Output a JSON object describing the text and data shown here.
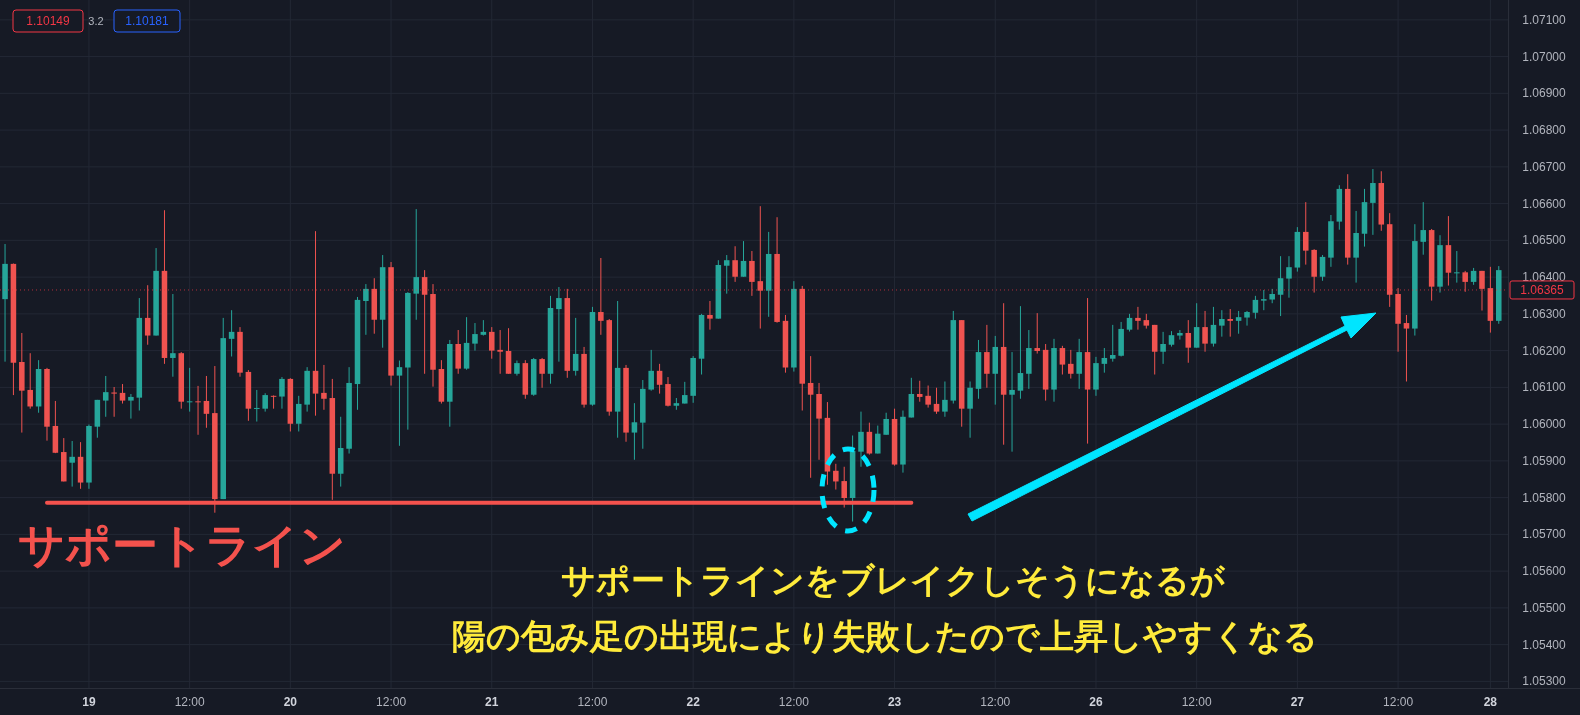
{
  "chart_data": {
    "type": "candlestick",
    "categories": [
      null,
      null,
      null,
      null,
      null,
      null,
      null,
      null,
      null,
      null,
      "19",
      null,
      null,
      null,
      null,
      null,
      null,
      null,
      null,
      null,
      null,
      null,
      "12:00",
      null,
      null,
      null,
      null,
      null,
      null,
      null,
      null,
      null,
      null,
      null,
      "20",
      null,
      null,
      null,
      null,
      null,
      null,
      null,
      null,
      null,
      null,
      null,
      "12:00",
      null,
      null,
      null,
      null,
      null,
      null,
      null,
      null,
      null,
      null,
      null,
      "21",
      null,
      null,
      null,
      null,
      null,
      null,
      null,
      null,
      null,
      null,
      null,
      "12:00",
      null,
      null,
      null,
      null,
      null,
      null,
      null,
      null,
      null,
      null,
      null,
      "22",
      null,
      null,
      null,
      null,
      null,
      null,
      null,
      null,
      null,
      null,
      null,
      "12:00",
      null,
      null,
      null,
      null,
      null,
      null,
      null,
      null,
      null,
      null,
      null,
      "23",
      null,
      null,
      null,
      null,
      null,
      null,
      null,
      null,
      null,
      null,
      null,
      "12:00",
      null,
      null,
      null,
      null,
      null,
      null,
      null,
      null,
      null,
      null,
      null,
      "26",
      null,
      null,
      null,
      null,
      null,
      null,
      null,
      null,
      null,
      null,
      null,
      "12:00",
      null,
      null,
      null,
      null,
      null,
      null,
      null,
      null,
      null,
      null,
      null,
      "27",
      null,
      null,
      null,
      null,
      null,
      null,
      null,
      null,
      null,
      null,
      null,
      "12:00",
      null,
      null,
      null,
      null,
      null,
      null,
      null,
      null,
      null,
      null,
      "28",
      null
    ],
    "ohlc": [
      [
        1.0634,
        1.0649,
        1.0617,
        1.06436
      ],
      [
        1.06436,
        1.06437,
        1.06079,
        1.06167
      ],
      [
        1.06169,
        1.06248,
        1.05977,
        1.06091
      ],
      [
        1.06093,
        1.06193,
        1.06042,
        1.06048
      ],
      [
        1.06048,
        1.06174,
        1.06031,
        1.0615
      ],
      [
        1.0615,
        1.06153,
        1.05955,
        1.05993
      ],
      [
        1.05995,
        1.06063,
        1.05921,
        1.05922
      ],
      [
        1.05924,
        1.05962,
        1.05844,
        1.05844
      ],
      [
        1.05895,
        1.05954,
        1.0583,
        1.05911
      ],
      [
        1.05911,
        1.05951,
        1.05824,
        1.05841
      ],
      [
        1.05841,
        1.05999,
        1.05824,
        1.05995
      ],
      [
        1.05993,
        1.06066,
        1.05963,
        1.06066
      ],
      [
        1.06064,
        1.06131,
        1.0602,
        1.06087
      ],
      [
        1.06086,
        1.06101,
        1.0602,
        1.06083
      ],
      [
        1.06085,
        1.06109,
        1.06056,
        1.06064
      ],
      [
        1.06064,
        1.06082,
        1.06015,
        1.06074
      ],
      [
        1.06072,
        1.06343,
        1.06037,
        1.06289
      ],
      [
        1.06289,
        1.06378,
        1.06216,
        1.06241
      ],
      [
        1.06241,
        1.06479,
        1.06241,
        1.06417
      ],
      [
        1.06417,
        1.06582,
        1.06164,
        1.0618
      ],
      [
        1.0618,
        1.06354,
        1.06129,
        1.06193
      ],
      [
        1.06193,
        1.06196,
        1.06042,
        1.06061
      ],
      [
        1.06061,
        1.06153,
        1.06034,
        1.06062
      ],
      [
        1.06062,
        1.06104,
        1.05971,
        1.06061
      ],
      [
        1.06063,
        1.06131,
        1.0599,
        1.06028
      ],
      [
        1.0603,
        1.06158,
        1.05759,
        1.05796
      ],
      [
        1.05796,
        1.06289,
        1.05796,
        1.06234
      ],
      [
        1.06232,
        1.0631,
        1.06184,
        1.06251
      ],
      [
        1.06251,
        1.06264,
        1.06129,
        1.0614
      ],
      [
        1.06142,
        1.06147,
        1.06009,
        1.06042
      ],
      [
        1.06043,
        1.06093,
        1.06007,
        1.06044
      ],
      [
        1.06042,
        1.06084,
        1.06034,
        1.06079
      ],
      [
        1.06077,
        1.06078,
        1.06042,
        1.06075
      ],
      [
        1.06075,
        1.06128,
        1.06042,
        1.06123
      ],
      [
        1.06123,
        1.06125,
        1.0598,
        1.06001
      ],
      [
        1.06001,
        1.06077,
        1.0598,
        1.06055
      ],
      [
        1.06053,
        1.06155,
        1.06034,
        1.06145
      ],
      [
        1.06145,
        1.06525,
        1.06023,
        1.06083
      ],
      [
        1.06085,
        1.06161,
        1.06039,
        1.06069
      ],
      [
        1.06071,
        1.06123,
        1.05794,
        1.05865
      ],
      [
        1.05865,
        1.0602,
        1.0583,
        1.05935
      ],
      [
        1.05933,
        1.06155,
        1.0592,
        1.06112
      ],
      [
        1.06109,
        1.06346,
        1.06039,
        1.06338
      ],
      [
        1.06335,
        1.06381,
        1.06243,
        1.06368
      ],
      [
        1.06368,
        1.06397,
        1.06246,
        1.06284
      ],
      [
        1.06284,
        1.0646,
        1.06208,
        1.06427
      ],
      [
        1.06427,
        1.06441,
        1.06105,
        1.06132
      ],
      [
        1.06132,
        1.06173,
        1.05941,
        1.06155
      ],
      [
        1.06154,
        1.06359,
        1.05985,
        1.06357
      ],
      [
        1.06355,
        1.06585,
        1.06284,
        1.064
      ],
      [
        1.064,
        1.06419,
        1.06137,
        1.06352
      ],
      [
        1.06354,
        1.06381,
        1.06102,
        1.06148
      ],
      [
        1.0615,
        1.06174,
        1.06056,
        1.06061
      ],
      [
        1.06061,
        1.06229,
        1.05993,
        1.06218
      ],
      [
        1.06218,
        1.06256,
        1.06137,
        1.06151
      ],
      [
        1.06151,
        1.06291,
        1.06148,
        1.06221
      ],
      [
        1.06219,
        1.06275,
        1.062,
        1.06245
      ],
      [
        1.06243,
        1.06283,
        1.06241,
        1.06251
      ],
      [
        1.06251,
        1.06264,
        1.06178,
        1.062
      ],
      [
        1.06202,
        1.06256,
        1.06137,
        1.06197
      ],
      [
        1.06199,
        1.06261,
        1.06137,
        1.06137
      ],
      [
        1.06137,
        1.06173,
        1.06132,
        1.06166
      ],
      [
        1.06166,
        1.06174,
        1.06069,
        1.0608
      ],
      [
        1.0608,
        1.0618,
        1.06077,
        1.06177
      ],
      [
        1.06177,
        1.0618,
        1.06099,
        1.06137
      ],
      [
        1.06137,
        1.06349,
        1.0611,
        1.06316
      ],
      [
        1.06313,
        1.06373,
        1.0617,
        1.06343
      ],
      [
        1.06343,
        1.06368,
        1.06126,
        1.06145
      ],
      [
        1.06145,
        1.06289,
        1.06132,
        1.06191
      ],
      [
        1.06191,
        1.0621,
        1.06045,
        1.06053
      ],
      [
        1.06053,
        1.06319,
        1.0605,
        1.06305
      ],
      [
        1.06305,
        1.06452,
        1.06243,
        1.06281
      ],
      [
        1.06283,
        1.06286,
        1.06023,
        1.06034
      ],
      [
        1.06034,
        1.06335,
        1.05963,
        1.06153
      ],
      [
        1.06153,
        1.06161,
        1.05952,
        1.05977
      ],
      [
        1.05977,
        1.06057,
        1.05903,
        1.06005
      ],
      [
        1.06004,
        1.0612,
        1.05933,
        1.06096
      ],
      [
        1.06094,
        1.06202,
        1.06091,
        1.06145
      ],
      [
        1.06145,
        1.06164,
        1.06083,
        1.06107
      ],
      [
        1.06109,
        1.06128,
        1.06048,
        1.0605
      ],
      [
        1.0605,
        1.06071,
        1.06039,
        1.06057
      ],
      [
        1.06056,
        1.06115,
        1.06056,
        1.06079
      ],
      [
        1.06077,
        1.06185,
        1.06058,
        1.0618
      ],
      [
        1.06178,
        1.063,
        1.06135,
        1.06297
      ],
      [
        1.06297,
        1.06335,
        1.06257,
        1.06287
      ],
      [
        1.06287,
        1.06446,
        1.06287,
        1.06433
      ],
      [
        1.06431,
        1.0646,
        1.06355,
        1.06446
      ],
      [
        1.06446,
        1.06484,
        1.06387,
        1.06401
      ],
      [
        1.06401,
        1.06498,
        1.06401,
        1.06444
      ],
      [
        1.06444,
        1.06471,
        1.06349,
        1.06387
      ],
      [
        1.06389,
        1.06593,
        1.0626,
        1.06363
      ],
      [
        1.06363,
        1.06523,
        1.06292,
        1.06463
      ],
      [
        1.06463,
        1.06563,
        1.06276,
        1.06278
      ],
      [
        1.06281,
        1.06297,
        1.0614,
        1.06154
      ],
      [
        1.06154,
        1.06389,
        1.06143,
        1.06368
      ],
      [
        1.06368,
        1.06376,
        1.06037,
        1.0611
      ],
      [
        1.06112,
        1.06185,
        1.05854,
        1.0608
      ],
      [
        1.06082,
        1.06112,
        1.05903,
        1.06015
      ],
      [
        1.06017,
        1.0606,
        1.05835,
        1.05871
      ],
      [
        1.05873,
        1.05892,
        1.05822,
        1.05844
      ],
      [
        1.05845,
        1.05884,
        1.05773,
        1.05799
      ],
      [
        1.05799,
        1.05969,
        1.05735,
        1.05927
      ],
      [
        1.05925,
        1.06034,
        1.05884,
        1.05979
      ],
      [
        1.05979,
        1.06004,
        1.05917,
        1.0592
      ],
      [
        1.0592,
        1.05996,
        1.0592,
        1.05974
      ],
      [
        1.05971,
        1.06031,
        1.05971,
        1.06014
      ],
      [
        1.06014,
        1.06042,
        1.05887,
        1.0589
      ],
      [
        1.0589,
        1.06037,
        1.05868,
        1.0602
      ],
      [
        1.06018,
        1.06126,
        1.06018,
        1.06082
      ],
      [
        1.06082,
        1.06118,
        1.06061,
        1.06074
      ],
      [
        1.06077,
        1.06105,
        1.06045,
        1.06053
      ],
      [
        1.06055,
        1.06099,
        1.06028,
        1.06034
      ],
      [
        1.06034,
        1.06116,
        1.0602,
        1.06066
      ],
      [
        1.06064,
        1.06308,
        1.06056,
        1.06283
      ],
      [
        1.06283,
        1.06283,
        1.05993,
        1.06042
      ],
      [
        1.06042,
        1.06116,
        1.05963,
        1.06099
      ],
      [
        1.06096,
        1.06229,
        1.06069,
        1.06196
      ],
      [
        1.06196,
        1.0627,
        1.06099,
        1.06137
      ],
      [
        1.06137,
        1.0624,
        1.06053,
        1.0621
      ],
      [
        1.0621,
        1.06329,
        1.05944,
        1.0608
      ],
      [
        1.0608,
        1.06196,
        1.05925,
        1.06093
      ],
      [
        1.06091,
        1.06321,
        1.06069,
        1.06139
      ],
      [
        1.06137,
        1.06256,
        1.06096,
        1.06207
      ],
      [
        1.06207,
        1.06302,
        1.06192,
        1.06199
      ],
      [
        1.06202,
        1.06218,
        1.06064,
        1.06094
      ],
      [
        1.06094,
        1.06232,
        1.06061,
        1.06207
      ],
      [
        1.06207,
        1.06213,
        1.06135,
        1.06162
      ],
      [
        1.06164,
        1.06202,
        1.06124,
        1.06137
      ],
      [
        1.06137,
        1.06232,
        1.06096,
        1.06196
      ],
      [
        1.06196,
        1.06343,
        1.05947,
        1.06094
      ],
      [
        1.06094,
        1.06183,
        1.06077,
        1.06166
      ],
      [
        1.06164,
        1.06207,
        1.0614,
        1.0618
      ],
      [
        1.06178,
        1.0627,
        1.0617,
        1.06188
      ],
      [
        1.06186,
        1.06278,
        1.06184,
        1.06259
      ],
      [
        1.06257,
        1.063,
        1.06252,
        1.06289
      ],
      [
        1.06289,
        1.06319,
        1.06257,
        1.06281
      ],
      [
        1.06283,
        1.063,
        1.0626,
        1.06268
      ],
      [
        1.0627,
        1.0627,
        1.06135,
        1.06197
      ],
      [
        1.06197,
        1.06251,
        1.06164,
        1.06218
      ],
      [
        1.06216,
        1.06253,
        1.06211,
        1.06242
      ],
      [
        1.06241,
        1.06256,
        1.0623,
        1.06248
      ],
      [
        1.06248,
        1.06283,
        1.06167,
        1.06208
      ],
      [
        1.06208,
        1.06329,
        1.06208,
        1.06264
      ],
      [
        1.06264,
        1.06308,
        1.06197,
        1.06219
      ],
      [
        1.06219,
        1.06319,
        1.06211,
        1.0627
      ],
      [
        1.06268,
        1.0631,
        1.06238,
        1.06286
      ],
      [
        1.06286,
        1.06313,
        1.06238,
        1.06281
      ],
      [
        1.06281,
        1.06308,
        1.06246,
        1.06291
      ],
      [
        1.0629,
        1.06308,
        1.06268,
        1.06305
      ],
      [
        1.06303,
        1.06349,
        1.06287,
        1.06338
      ],
      [
        1.06336,
        1.06365,
        1.0631,
        1.0634
      ],
      [
        1.06339,
        1.06368,
        1.06329,
        1.06354
      ],
      [
        1.06352,
        1.06457,
        1.06294,
        1.06397
      ],
      [
        1.06396,
        1.06457,
        1.06344,
        1.06427
      ],
      [
        1.06426,
        1.06536,
        1.06415,
        1.06523
      ],
      [
        1.06523,
        1.06604,
        1.06434,
        1.06472
      ],
      [
        1.06474,
        1.06476,
        1.06358,
        1.06401
      ],
      [
        1.06401,
        1.0646,
        1.0639,
        1.06455
      ],
      [
        1.06453,
        1.06569,
        1.06428,
        1.06552
      ],
      [
        1.06551,
        1.0665,
        1.06529,
        1.0664
      ],
      [
        1.0664,
        1.0668,
        1.06434,
        1.06453
      ],
      [
        1.06453,
        1.0658,
        1.06385,
        1.0652
      ],
      [
        1.06518,
        1.0664,
        1.06483,
        1.06604
      ],
      [
        1.06602,
        1.06694,
        1.06515,
        1.06656
      ],
      [
        1.06656,
        1.06688,
        1.06526,
        1.06543
      ],
      [
        1.06544,
        1.06574,
        1.06319,
        1.06352
      ],
      [
        1.06354,
        1.0637,
        1.06197,
        1.06273
      ],
      [
        1.06275,
        1.06297,
        1.06116,
        1.0626
      ],
      [
        1.0626,
        1.06544,
        1.06241,
        1.06498
      ],
      [
        1.06496,
        1.06604,
        1.06461,
        1.06528
      ],
      [
        1.06528,
        1.06531,
        1.06336,
        1.06374
      ],
      [
        1.06374,
        1.06514,
        1.06358,
        1.06487
      ],
      [
        1.06487,
        1.06566,
        1.06377,
        1.06412
      ],
      [
        1.06412,
        1.06471,
        1.06385,
        1.06413
      ],
      [
        1.06413,
        1.06417,
        1.0636,
        1.06387
      ],
      [
        1.06387,
        1.06425,
        1.06379,
        1.06417
      ],
      [
        1.06417,
        1.06417,
        1.06309,
        1.06368
      ],
      [
        1.0637,
        1.06428,
        1.06249,
        1.06281
      ],
      [
        1.06281,
        1.0643,
        1.06273,
        1.06419
      ]
    ],
    "series": [
      {
        "type": "line",
        "name": "サポートライン",
        "color": "#f4524d",
        "values": [
          null,
          null,
          null,
          null,
          null,
          1.05786,
          1.05786,
          1.05786,
          1.05786,
          1.05786,
          1.05786,
          1.05786,
          1.05786,
          1.05786,
          1.05786,
          1.05786,
          1.05786,
          1.05786,
          1.05786,
          1.05786,
          1.05786,
          1.05786,
          1.05786,
          1.05786,
          1.05786,
          1.05786,
          1.05786,
          1.05786,
          1.05786,
          1.05786,
          1.05786,
          1.05786,
          1.05786,
          1.05786,
          1.05786,
          1.05786,
          1.05786,
          1.05786,
          1.05786,
          1.05786,
          1.05786,
          1.05786,
          1.05786,
          1.05786,
          1.05786,
          1.05786,
          1.05786,
          1.05786,
          1.05786,
          1.05786,
          1.05786,
          1.05786,
          1.05786,
          1.05786,
          1.05786,
          1.05786,
          1.05786,
          1.05786,
          1.05786,
          1.05786,
          1.05786,
          1.05786,
          1.05786,
          1.05786,
          1.05786,
          1.05786,
          1.05786,
          1.05786,
          1.05786,
          1.05786,
          1.05786,
          1.05786,
          1.05786,
          1.05786,
          1.05786,
          1.05786,
          1.05786,
          1.05786,
          1.05786,
          1.05786,
          1.05786,
          1.05786,
          1.05786,
          1.05786,
          1.05786,
          1.05786,
          1.05786,
          1.05786,
          1.05786,
          1.05786,
          1.05786,
          1.05786,
          1.05786,
          1.05786,
          1.05786,
          1.05786,
          1.05786,
          1.05786,
          1.05786,
          1.05786,
          1.05786,
          1.05786,
          1.05786,
          1.05786,
          1.05786,
          1.05786,
          1.05786,
          1.05786,
          1.05786,
          null,
          null,
          null,
          null,
          null,
          null,
          null,
          null,
          null,
          null,
          null,
          null,
          null,
          null,
          null,
          null,
          null,
          null,
          null,
          null,
          null,
          null,
          null,
          null,
          null,
          null,
          null,
          null,
          null,
          null,
          null,
          null,
          null,
          null,
          null,
          null,
          null,
          null,
          null,
          null,
          null,
          null,
          null,
          null,
          null,
          null,
          null,
          null,
          null,
          null,
          null,
          null,
          null,
          null,
          null,
          null,
          null,
          null,
          null,
          null,
          null,
          null,
          null,
          null,
          null,
          null,
          null,
          null,
          null,
          null
        ]
      }
    ],
    "ref_lines": [
      {
        "axis": "y",
        "value": 1.06365,
        "label": "1.06365",
        "color": "#f23645",
        "line_style": "dotted"
      }
    ],
    "annotations": [
      "サポートラインをブレイクしそうになるが",
      "陽の包み足の出現により失敗したので上昇しやすくなる",
      "1.10149",
      "3.2",
      "1.10181"
    ],
    "ylim": [
      1.05282,
      1.07154
    ],
    "yticks": [
      {
        "value": 1.053,
        "label": "1.05300"
      },
      {
        "value": 1.054,
        "label": "1.05400"
      },
      {
        "value": 1.055,
        "label": "1.05500"
      },
      {
        "value": 1.056,
        "label": "1.05600"
      },
      {
        "value": 1.057,
        "label": "1.05700"
      },
      {
        "value": 1.058,
        "label": "1.05800"
      },
      {
        "value": 1.059,
        "label": "1.05900"
      },
      {
        "value": 1.06,
        "label": "1.06000"
      },
      {
        "value": 1.061,
        "label": "1.06100"
      },
      {
        "value": 1.062,
        "label": "1.06200"
      },
      {
        "value": 1.063,
        "label": "1.06300"
      },
      {
        "value": 1.064,
        "label": "1.06400"
      },
      {
        "value": 1.065,
        "label": "1.06500"
      },
      {
        "value": 1.066,
        "label": "1.06600"
      },
      {
        "value": 1.067,
        "label": "1.06700"
      },
      {
        "value": 1.068,
        "label": "1.06800"
      },
      {
        "value": 1.069,
        "label": "1.06900"
      },
      {
        "value": 1.07,
        "label": "1.07000"
      },
      {
        "value": 1.071,
        "label": "1.07100"
      }
    ],
    "grid": true
  }
}
